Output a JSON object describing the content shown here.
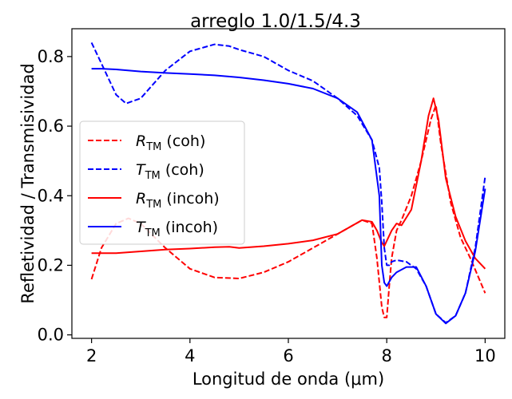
{
  "chart_data": {
    "type": "line",
    "title": "arreglo 1.0/1.5/4.3",
    "xlabel": "Longitud de onda (μm)",
    "ylabel": "Refletividad / Transmisividad",
    "xlim": [
      1.6,
      10.4
    ],
    "ylim": [
      -0.01,
      0.88
    ],
    "xticks": [
      2,
      4,
      6,
      8,
      10
    ],
    "xtick_labels": [
      "2",
      "4",
      "6",
      "8",
      "10"
    ],
    "yticks": [
      0.0,
      0.2,
      0.4,
      0.6,
      0.8
    ],
    "ytick_labels": [
      "0.0",
      "0.2",
      "0.4",
      "0.6",
      "0.8"
    ],
    "grid": false,
    "legend_position": "center-left",
    "series": [
      {
        "name": "R_TM (coh)",
        "legend_main": "R",
        "legend_sub": "TM",
        "legend_rest": " (coh)",
        "color": "#ff0000",
        "style": "dashed",
        "x": [
          2.0,
          2.2,
          2.5,
          2.75,
          3.0,
          3.5,
          4.0,
          4.5,
          5.0,
          5.5,
          6.0,
          6.5,
          7.0,
          7.5,
          7.7,
          7.8,
          7.9,
          7.95,
          8.0,
          8.05,
          8.1,
          8.2,
          8.3,
          8.5,
          8.7,
          8.9,
          9.0,
          9.1,
          9.3,
          9.5,
          9.7,
          10.0
        ],
        "y": [
          0.16,
          0.25,
          0.32,
          0.335,
          0.32,
          0.25,
          0.19,
          0.165,
          0.162,
          0.18,
          0.21,
          0.25,
          0.29,
          0.33,
          0.32,
          0.22,
          0.08,
          0.05,
          0.05,
          0.14,
          0.22,
          0.3,
          0.33,
          0.4,
          0.5,
          0.62,
          0.66,
          0.55,
          0.38,
          0.28,
          0.22,
          0.12
        ]
      },
      {
        "name": "T_TM (coh)",
        "legend_main": "T",
        "legend_sub": "TM",
        "legend_rest": " (coh)",
        "color": "#0000ff",
        "style": "dashed",
        "x": [
          2.0,
          2.2,
          2.5,
          2.7,
          3.0,
          3.5,
          4.0,
          4.5,
          4.8,
          5.0,
          5.5,
          6.0,
          6.5,
          7.0,
          7.4,
          7.7,
          7.85,
          7.9,
          7.95,
          8.0,
          8.05,
          8.1,
          8.2,
          8.4,
          8.6,
          8.8,
          9.0,
          9.2,
          9.4,
          9.6,
          9.8,
          10.0
        ],
        "y": [
          0.84,
          0.78,
          0.69,
          0.665,
          0.68,
          0.76,
          0.815,
          0.835,
          0.83,
          0.82,
          0.8,
          0.76,
          0.73,
          0.68,
          0.63,
          0.56,
          0.48,
          0.38,
          0.25,
          0.2,
          0.2,
          0.21,
          0.215,
          0.21,
          0.19,
          0.14,
          0.06,
          0.035,
          0.055,
          0.12,
          0.25,
          0.455
        ]
      },
      {
        "name": "R_TM (incoh)",
        "legend_main": "R",
        "legend_sub": "TM",
        "legend_rest": " (incoh)",
        "color": "#ff0000",
        "style": "solid",
        "x": [
          2.0,
          2.5,
          3.0,
          3.5,
          4.0,
          4.5,
          4.8,
          5.0,
          5.5,
          6.0,
          6.5,
          7.0,
          7.5,
          7.7,
          7.8,
          7.9,
          7.95,
          8.0,
          8.1,
          8.2,
          8.3,
          8.5,
          8.7,
          8.85,
          8.95,
          9.05,
          9.2,
          9.4,
          9.6,
          9.8,
          10.0
        ],
        "y": [
          0.235,
          0.235,
          0.24,
          0.245,
          0.248,
          0.252,
          0.253,
          0.25,
          0.255,
          0.262,
          0.272,
          0.29,
          0.33,
          0.325,
          0.3,
          0.265,
          0.255,
          0.27,
          0.3,
          0.32,
          0.315,
          0.36,
          0.5,
          0.63,
          0.68,
          0.62,
          0.45,
          0.34,
          0.27,
          0.22,
          0.19
        ]
      },
      {
        "name": "T_TM (incoh)",
        "legend_main": "T",
        "legend_sub": "TM",
        "legend_rest": " (incoh)",
        "color": "#0000ff",
        "style": "solid",
        "x": [
          2.0,
          2.2,
          2.5,
          3.0,
          3.5,
          4.0,
          4.5,
          5.0,
          5.5,
          6.0,
          6.5,
          7.0,
          7.4,
          7.7,
          7.85,
          7.9,
          7.95,
          8.0,
          8.1,
          8.2,
          8.4,
          8.6,
          8.8,
          9.0,
          9.2,
          9.4,
          9.6,
          9.8,
          10.0
        ],
        "y": [
          0.765,
          0.765,
          0.763,
          0.757,
          0.753,
          0.75,
          0.746,
          0.74,
          0.732,
          0.722,
          0.708,
          0.68,
          0.64,
          0.56,
          0.4,
          0.2,
          0.15,
          0.14,
          0.165,
          0.18,
          0.195,
          0.195,
          0.14,
          0.06,
          0.033,
          0.055,
          0.12,
          0.24,
          0.42
        ]
      }
    ]
  }
}
